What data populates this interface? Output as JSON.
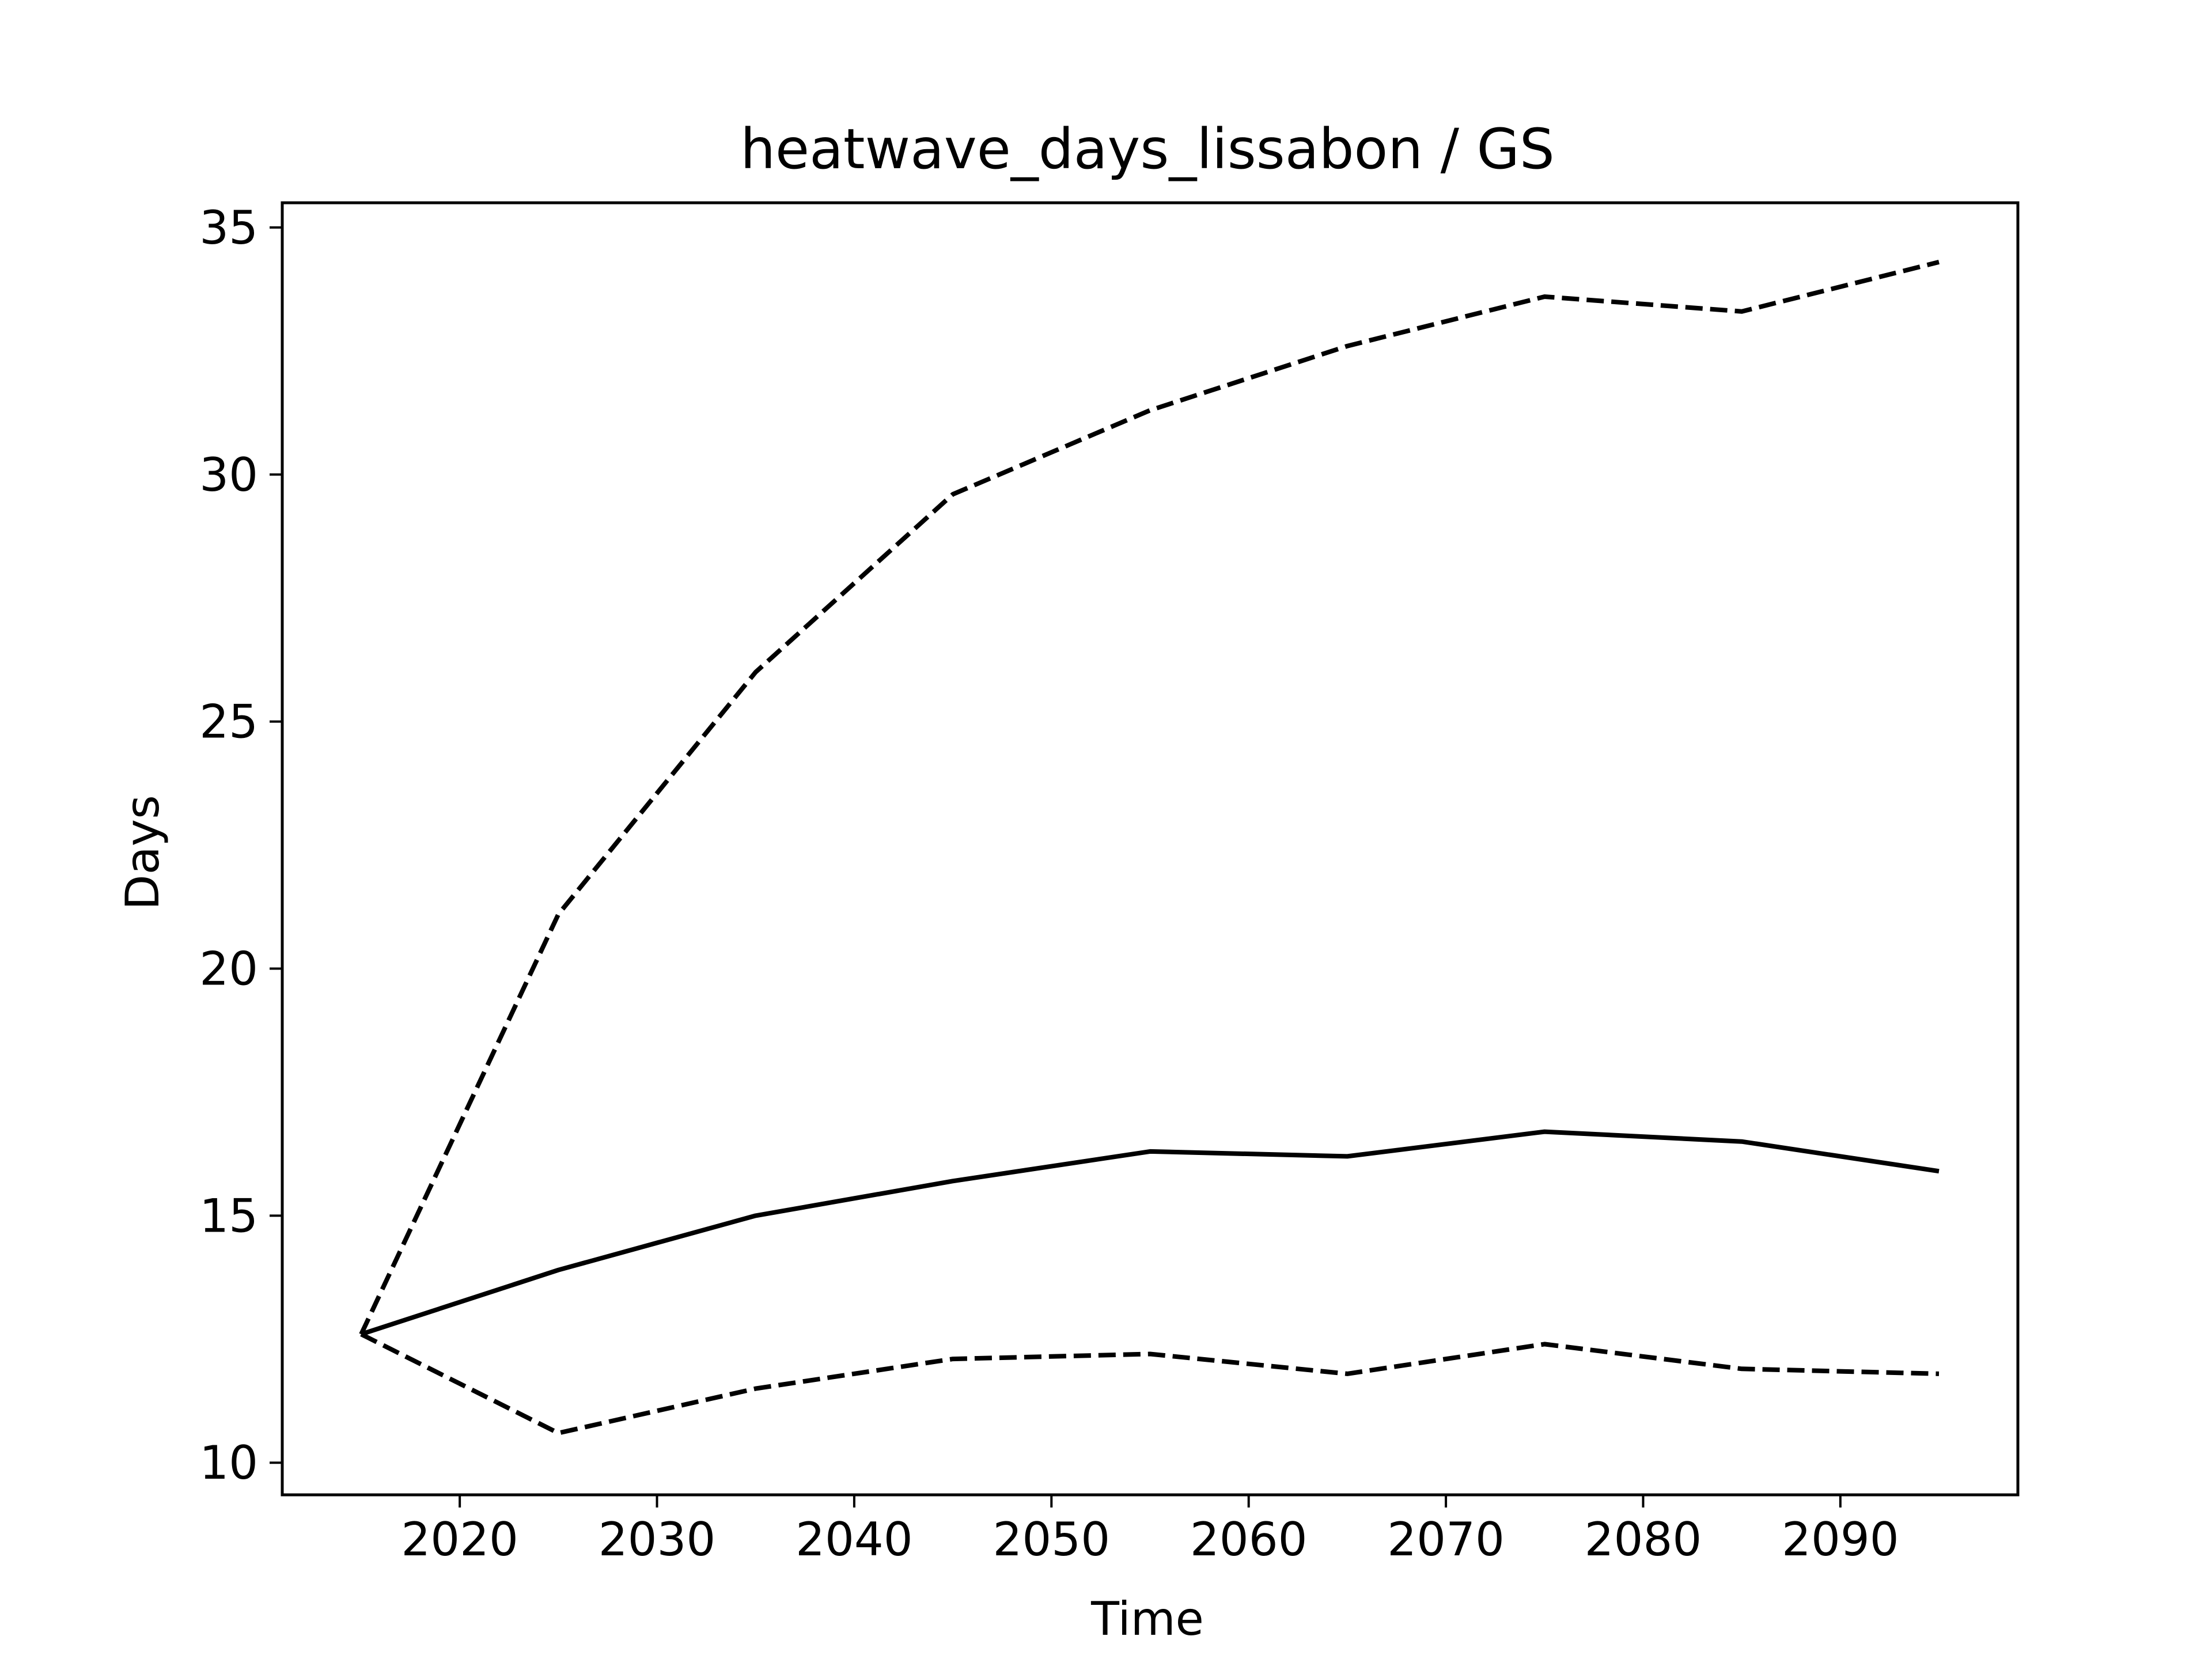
{
  "chart_data": {
    "type": "line",
    "title": "heatwave_days_lissabon / GS",
    "xlabel": "Time",
    "ylabel": "Days",
    "x": [
      2015,
      2025,
      2035,
      2045,
      2055,
      2065,
      2075,
      2085,
      2095
    ],
    "xlim": [
      2011,
      2099
    ],
    "ylim": [
      9.35,
      35.5
    ],
    "xticks": [
      2020,
      2030,
      2040,
      2050,
      2060,
      2070,
      2080,
      2090
    ],
    "yticks": [
      10,
      15,
      20,
      25,
      30,
      35
    ],
    "grid": false,
    "legend": "none",
    "line_color": "#000000",
    "series": [
      {
        "style": "solid",
        "values": [
          12.6,
          13.9,
          15.0,
          15.7,
          16.3,
          16.2,
          16.7,
          16.5,
          15.9
        ]
      },
      {
        "style": "dashed",
        "values": [
          12.6,
          21.1,
          26.0,
          29.6,
          31.3,
          32.6,
          33.6,
          33.3,
          34.3
        ]
      },
      {
        "style": "dashed",
        "values": [
          12.6,
          10.6,
          11.5,
          12.1,
          12.2,
          11.8,
          12.4,
          11.9,
          11.8
        ]
      }
    ]
  }
}
